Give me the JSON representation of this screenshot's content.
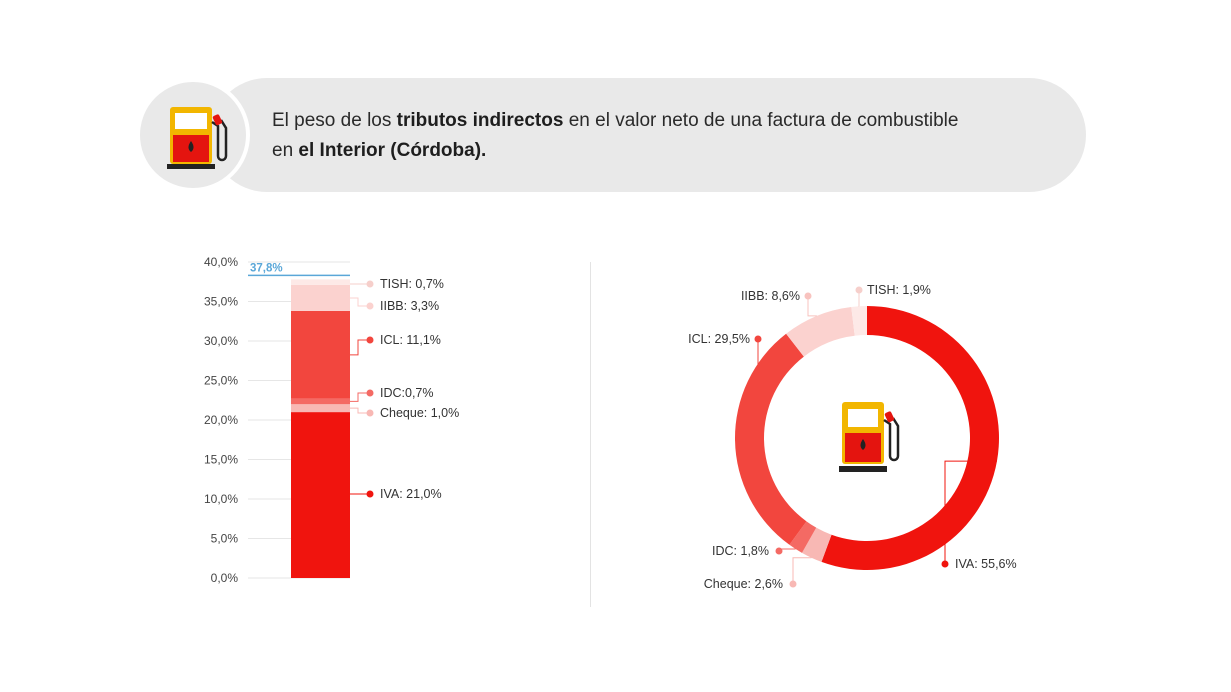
{
  "header": {
    "t1": "El peso de los ",
    "b1": "tributos indirectos",
    "t2": " en el valor neto de una factura de combustible",
    "t3": "en ",
    "b2": "el Interior (Córdoba)."
  },
  "colors": {
    "iva": "#f0140e",
    "idc": "#f46a64",
    "cheque": "#f8b8b4",
    "icl": "#f2463e",
    "iibb": "#fbd2cf",
    "tish": "#fde9e7",
    "total_line": "#5aa7d8"
  },
  "icon": "fuel-pump-icon",
  "chart_data": [
    {
      "type": "bar",
      "stacked": true,
      "ylim": [
        0,
        40
      ],
      "yticks": [
        "0,0%",
        "5,0%",
        "10,0%",
        "15,0%",
        "20,0%",
        "25,0%",
        "30,0%",
        "35,0%",
        "40,0%"
      ],
      "total_label": "37,8%",
      "total_value": 37.8,
      "series": [
        {
          "key": "iva",
          "name": "IVA",
          "value": 21.0,
          "label": "IVA: 21,0%"
        },
        {
          "key": "cheque",
          "name": "Cheque",
          "value": 1.0,
          "label": "Cheque: 1,0%"
        },
        {
          "key": "idc",
          "name": "IDC",
          "value": 0.7,
          "label": "IDC:0,7%"
        },
        {
          "key": "icl",
          "name": "ICL",
          "value": 11.1,
          "label": "ICL: 11,1%"
        },
        {
          "key": "iibb",
          "name": "IIBB",
          "value": 3.3,
          "label": "IIBB: 3,3%"
        },
        {
          "key": "tish",
          "name": "TISH",
          "value": 0.7,
          "label": "TISH: 0,7%"
        }
      ]
    },
    {
      "type": "pie",
      "donut": true,
      "slices": [
        {
          "key": "iva",
          "name": "IVA",
          "value": 55.6,
          "label": "IVA: 55,6%"
        },
        {
          "key": "cheque",
          "name": "Cheque",
          "value": 2.6,
          "label": "Cheque: 2,6%"
        },
        {
          "key": "idc",
          "name": "IDC",
          "value": 1.8,
          "label": "IDC: 1,8%"
        },
        {
          "key": "icl",
          "name": "ICL",
          "value": 29.5,
          "label": "ICL: 29,5%"
        },
        {
          "key": "iibb",
          "name": "IIBB",
          "value": 8.6,
          "label": "IIBB: 8,6%"
        },
        {
          "key": "tish",
          "name": "TISH",
          "value": 1.9,
          "label": "TISH: 1,9%"
        }
      ]
    }
  ]
}
